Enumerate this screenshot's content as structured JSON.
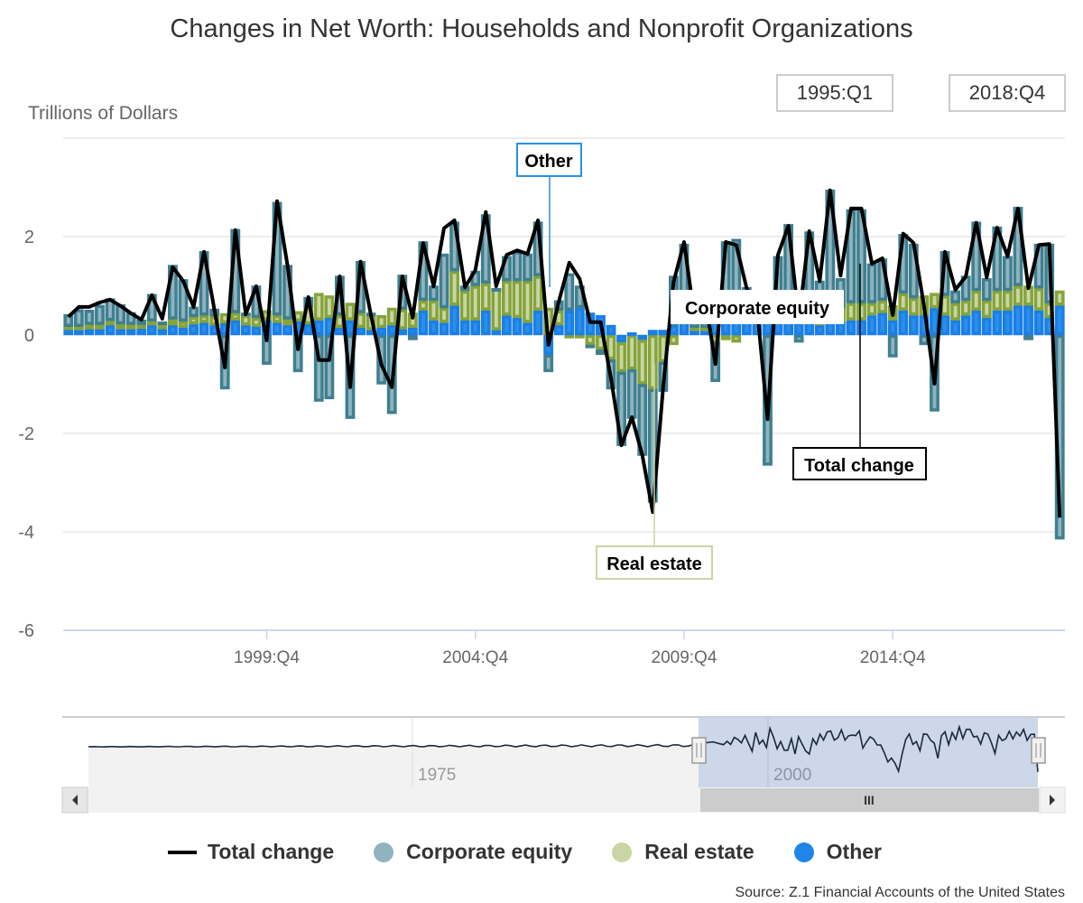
{
  "range_selector": {
    "from": "1995:Q1",
    "to": "2018:Q4"
  },
  "navigator": {
    "ticks": [
      "1975",
      "2000"
    ],
    "scroll_grip": "III",
    "left_arrow": "◀",
    "right_arrow": "▶",
    "handle_glyph": "||"
  },
  "annotations": {
    "other": "Other",
    "corporate_equity": "Corporate equity",
    "real_estate": "Real estate",
    "total_change": "Total change"
  },
  "legend": [
    {
      "label": "Total change",
      "color": "#000000",
      "symbol": "line"
    },
    {
      "label": "Corporate equity",
      "color": "#8fb3bf",
      "symbol": "circle"
    },
    {
      "label": "Real estate",
      "color": "#c9d6a3",
      "symbol": "circle"
    },
    {
      "label": "Other",
      "color": "#1f86e8",
      "symbol": "circle"
    }
  ],
  "source": "Source: Z.1 Financial Accounts of the United States",
  "colors": {
    "equity_fill": "#8fb3bf",
    "equity_border": "#3f7f8f",
    "realestate_fill": "#c9d6a3",
    "realestate_border": "#86a33a",
    "other_fill": "#2a8fe6",
    "other_border": "#1a7ee8",
    "total_line": "#000000",
    "grid": "#e6e6e6"
  },
  "chart_data": {
    "type": "bar",
    "title": "Changes in Net Worth: Households and Nonprofit Organizations",
    "ylabel": "Trillions of Dollars",
    "xlabel": "",
    "ylim": [
      -6,
      4
    ],
    "yticks": [
      -6,
      -4,
      -2,
      0,
      2
    ],
    "xticks": [
      "1999:Q4",
      "2004:Q4",
      "2009:Q4",
      "2014:Q4"
    ],
    "x_start": "1995:Q1",
    "x_end": "2018:Q4",
    "grid": true,
    "legend_position": "bottom",
    "series": [
      {
        "name": "Total change",
        "type": "line",
        "values": [
          0.37,
          0.57,
          0.57,
          0.66,
          0.72,
          0.59,
          0.44,
          0.31,
          0.81,
          0.33,
          1.38,
          1.1,
          0.57,
          1.69,
          0.5,
          -0.66,
          2.13,
          0.42,
          0.99,
          -0.11,
          2.72,
          1.41,
          -0.29,
          0.77,
          -0.51,
          -0.51,
          1.19,
          -1.06,
          1.49,
          0.4,
          -0.61,
          -1.06,
          1.19,
          0.35,
          1.87,
          0.99,
          2.17,
          2.33,
          0.97,
          1.32,
          2.5,
          0.99,
          1.63,
          1.72,
          1.65,
          2.33,
          -0.2,
          0.68,
          1.47,
          1.14,
          0.26,
          0.26,
          -0.88,
          -2.24,
          -1.67,
          -2.44,
          -3.6,
          -1.06,
          1.08,
          1.89,
          0.35,
          0.77,
          -0.59,
          1.89,
          1.83,
          0.95,
          0.53,
          -1.71,
          1.63,
          2.22,
          0.31,
          2.11,
          1.1,
          2.94,
          1.21,
          2.57,
          2.57,
          1.45,
          1.56,
          0.4,
          2.06,
          1.87,
          0.59,
          -0.99,
          1.69,
          0.92,
          1.19,
          2.28,
          1.17,
          2.18,
          1.6,
          2.57,
          0.95,
          1.83,
          1.85,
          -3.71
        ]
      },
      {
        "name": "Corporate equity",
        "type": "column",
        "values": [
          0.25,
          0.35,
          0.3,
          0.4,
          0.45,
          0.4,
          0.25,
          0.1,
          0.55,
          0.05,
          1.1,
          0.85,
          0.2,
          1.3,
          0.15,
          -1.1,
          1.7,
          0.05,
          0.65,
          -0.6,
          2.3,
          1.1,
          -0.75,
          0.2,
          -1.35,
          -1.3,
          0.8,
          -1.7,
          1.05,
          0.05,
          -1.0,
          -1.6,
          0.7,
          -0.1,
          1.2,
          0.3,
          1.1,
          1.0,
          0.1,
          0.3,
          1.4,
          0.0,
          0.5,
          0.6,
          0.55,
          1.1,
          -0.35,
          0.2,
          0.75,
          0.45,
          -0.05,
          -0.1,
          -0.6,
          -1.5,
          -1.0,
          -1.45,
          -2.3,
          -0.6,
          1.0,
          1.5,
          0.2,
          0.6,
          -0.8,
          1.5,
          1.4,
          0.6,
          0.2,
          -2.65,
          1.2,
          1.7,
          -0.15,
          1.6,
          0.65,
          2.4,
          0.6,
          1.9,
          1.9,
          0.8,
          0.85,
          -0.45,
          1.2,
          1.1,
          -0.2,
          -1.55,
          0.9,
          0.25,
          0.5,
          1.4,
          0.45,
          1.3,
          0.7,
          1.6,
          -0.1,
          0.9,
          1.2,
          -4.15
        ]
      },
      {
        "name": "Real estate",
        "type": "column",
        "values": [
          0.05,
          0.07,
          0.09,
          0.09,
          0.09,
          0.1,
          0.09,
          0.08,
          0.08,
          0.1,
          0.12,
          0.13,
          0.15,
          0.15,
          0.18,
          0.2,
          0.15,
          0.2,
          0.18,
          0.2,
          0.15,
          0.12,
          0.2,
          0.35,
          0.55,
          0.45,
          0.25,
          0.35,
          0.3,
          0.3,
          0.25,
          0.35,
          0.4,
          0.3,
          0.2,
          0.4,
          0.3,
          0.7,
          0.6,
          0.7,
          0.55,
          0.85,
          0.7,
          0.75,
          0.85,
          0.7,
          0.55,
          0.3,
          -0.05,
          -0.05,
          -0.2,
          -0.3,
          -0.5,
          -0.6,
          -0.7,
          -0.9,
          -1.1,
          -0.55,
          -0.2,
          0.0,
          0.05,
          0.0,
          -0.15,
          -0.1,
          -0.15,
          0.02,
          0.0,
          0.1,
          0.05,
          0.15,
          0.2,
          0.2,
          0.25,
          0.25,
          0.3,
          0.35,
          0.35,
          0.25,
          0.25,
          0.3,
          0.35,
          0.35,
          0.4,
          0.3,
          0.4,
          0.35,
          0.3,
          0.4,
          0.35,
          0.4,
          0.4,
          0.4,
          0.4,
          0.45,
          0.3,
          0.3
        ]
      },
      {
        "name": "Other",
        "type": "column",
        "values": [
          0.12,
          0.1,
          0.12,
          0.12,
          0.2,
          0.12,
          0.12,
          0.13,
          0.2,
          0.12,
          0.2,
          0.15,
          0.22,
          0.25,
          0.2,
          0.24,
          0.3,
          0.2,
          0.17,
          0.3,
          0.25,
          0.2,
          0.28,
          0.22,
          0.3,
          0.35,
          0.15,
          0.3,
          0.15,
          0.1,
          0.15,
          0.2,
          0.12,
          0.15,
          0.5,
          0.3,
          0.25,
          0.6,
          0.3,
          0.3,
          0.5,
          0.1,
          0.4,
          0.35,
          0.25,
          0.5,
          -0.4,
          0.2,
          0.5,
          0.55,
          0.45,
          0.4,
          0.2,
          -0.15,
          0.05,
          -0.1,
          0.1,
          0.1,
          0.2,
          0.35,
          0.1,
          0.15,
          0.3,
          0.4,
          0.55,
          0.35,
          0.35,
          0.8,
          0.35,
          0.4,
          0.25,
          0.3,
          0.2,
          0.3,
          0.25,
          0.3,
          0.3,
          0.4,
          0.45,
          0.3,
          0.5,
          0.4,
          0.4,
          0.55,
          0.4,
          0.3,
          0.4,
          0.5,
          0.35,
          0.5,
          0.5,
          0.6,
          0.6,
          0.5,
          0.35,
          0.6
        ]
      }
    ]
  }
}
